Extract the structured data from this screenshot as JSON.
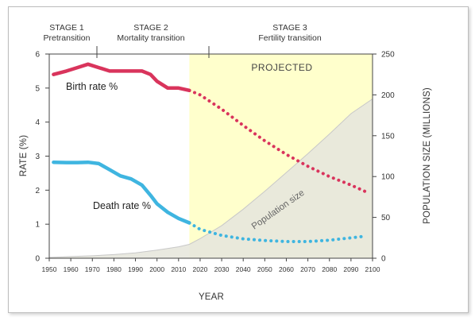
{
  "chart_data": {
    "type": "line",
    "x": [
      1950,
      1955,
      1960,
      1965,
      1970,
      1975,
      1980,
      1985,
      1990,
      1995,
      2000,
      2005,
      2010,
      2015,
      2020,
      2025,
      2030,
      2035,
      2040,
      2045,
      2050,
      2055,
      2060,
      2065,
      2070,
      2075,
      2080,
      2085,
      2090,
      2095,
      2100
    ],
    "xlabel": "YEAR",
    "ylabel": "RATE (%)",
    "ylabel_right": "POPULATION SIZE (MILLIONS)",
    "xlim": [
      1950,
      2100
    ],
    "ylim": [
      0,
      6
    ],
    "ylim_right": [
      0,
      250
    ],
    "x_ticks": [
      "1950",
      "1960",
      "1970",
      "1980",
      "1990",
      "2000",
      "2010",
      "2020",
      "2030",
      "2040",
      "2050",
      "2060",
      "2070",
      "2080",
      "2090",
      "2100"
    ],
    "y_ticks": [
      "0",
      "1",
      "2",
      "3",
      "4",
      "5",
      "6"
    ],
    "y_ticks_right": [
      "0",
      "50",
      "100",
      "150",
      "200",
      "250"
    ],
    "projection_start": 2015,
    "series": [
      {
        "name": "Birth rate %",
        "axis": "left",
        "color": "#d9345c",
        "x": [
          1952,
          1958,
          1963,
          1968,
          1973,
          1978,
          1983,
          1988,
          1993,
          1997,
          2000,
          2005,
          2010,
          2015,
          2020,
          2030,
          2040,
          2050,
          2060,
          2070,
          2080,
          2090,
          2097
        ],
        "values": [
          5.4,
          5.5,
          5.6,
          5.7,
          5.6,
          5.5,
          5.5,
          5.5,
          5.5,
          5.4,
          5.2,
          5.0,
          5.0,
          4.93,
          4.8,
          4.38,
          3.9,
          3.45,
          3.05,
          2.7,
          2.4,
          2.15,
          1.95
        ],
        "projected_from": 2015
      },
      {
        "name": "Death rate %",
        "axis": "left",
        "color": "#3fb5e0",
        "x": [
          1952,
          1958,
          1963,
          1968,
          1973,
          1978,
          1983,
          1988,
          1993,
          1997,
          2000,
          2005,
          2010,
          2015,
          2020,
          2030,
          2040,
          2050,
          2060,
          2070,
          2080,
          2090,
          2097
        ],
        "values": [
          2.82,
          2.81,
          2.81,
          2.82,
          2.78,
          2.6,
          2.42,
          2.33,
          2.15,
          1.85,
          1.6,
          1.35,
          1.17,
          1.04,
          0.85,
          0.67,
          0.57,
          0.52,
          0.49,
          0.49,
          0.53,
          0.6,
          0.65
        ],
        "projected_from": 2015
      },
      {
        "name": "Population size",
        "axis": "right",
        "type": "area",
        "color": "#d4d4d4",
        "x": [
          1950,
          1960,
          1970,
          1980,
          1990,
          2000,
          2010,
          2015,
          2020,
          2030,
          2040,
          2050,
          2060,
          2070,
          2080,
          2090,
          2100
        ],
        "values": [
          1,
          2,
          3,
          4.5,
          6.5,
          10,
          14,
          17,
          24,
          40,
          60,
          82,
          105,
          128,
          152,
          177,
          195
        ]
      }
    ],
    "stages": [
      {
        "label": "STAGE 1",
        "sublabel": "Pretransition"
      },
      {
        "label": "STAGE 2",
        "sublabel": "Mortality transition"
      },
      {
        "label": "STAGE 3",
        "sublabel": "Fertility transition"
      }
    ],
    "annotations": {
      "projected": "PROJECTED",
      "birth": "Birth rate %",
      "death": "Death rate %",
      "population": "Population size"
    },
    "colors": {
      "birth": "#d9345c",
      "death": "#3fb5e0",
      "projected_bg": "#ffffcc",
      "population_fill": "#e7e7dd"
    }
  }
}
